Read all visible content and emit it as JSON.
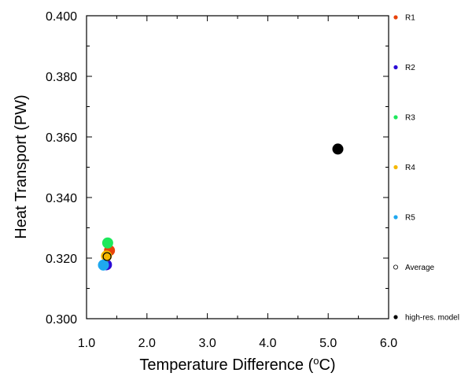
{
  "chart_data": {
    "type": "scatter",
    "title": "",
    "xlabel": "Temperature Difference (°C)",
    "xlabel_parts": {
      "before": "Temperature Difference (",
      "superscript": "o",
      "after": "C)"
    },
    "ylabel": "Heat Transport (PW)",
    "xlim": [
      1.0,
      6.0
    ],
    "ylim": [
      0.3,
      0.4
    ],
    "x_ticks": [
      1.0,
      2.0,
      3.0,
      4.0,
      5.0,
      6.0
    ],
    "x_tick_labels": [
      "1.0",
      "2.0",
      "3.0",
      "4.0",
      "5.0",
      "6.0"
    ],
    "y_ticks": [
      0.3,
      0.32,
      0.34,
      0.36,
      0.38,
      0.4
    ],
    "y_tick_labels": [
      "0.300",
      "0.320",
      "0.340",
      "0.360",
      "0.380",
      "0.400"
    ],
    "grid": false,
    "legend_position": "right",
    "series": [
      {
        "name": "R1",
        "color": "#e8420a",
        "marker": "filled-circle",
        "points": [
          [
            1.38,
            0.3225
          ]
        ]
      },
      {
        "name": "R2",
        "color": "#2a0bd6",
        "marker": "filled-circle",
        "points": [
          [
            1.33,
            0.3178
          ]
        ]
      },
      {
        "name": "R3",
        "color": "#1de85b",
        "marker": "filled-circle",
        "points": [
          [
            1.35,
            0.325
          ]
        ]
      },
      {
        "name": "R4",
        "color": "#f5b800",
        "marker": "filled-circle",
        "points": [
          [
            1.33,
            0.3207
          ]
        ]
      },
      {
        "name": "R5",
        "color": "#1fa8ef",
        "marker": "filled-circle",
        "points": [
          [
            1.28,
            0.3177
          ]
        ]
      },
      {
        "name": "Average",
        "color": "#000000",
        "marker": "open-circle",
        "points": [
          [
            1.34,
            0.3205
          ]
        ]
      },
      {
        "name": "high-res. model",
        "color": "#000000",
        "marker": "filled-circle",
        "points": [
          [
            5.16,
            0.356
          ]
        ]
      }
    ]
  }
}
